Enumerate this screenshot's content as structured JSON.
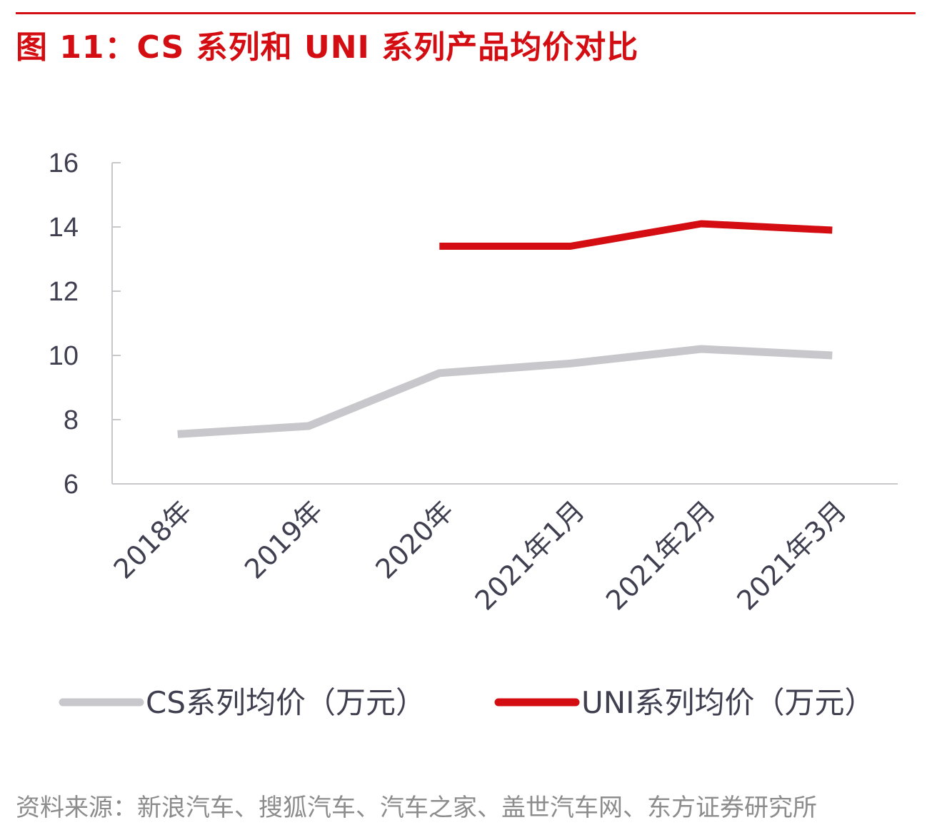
{
  "figure_title": "图 11：CS 系列和 UNI 系列产品均价对比",
  "source_text": "资料来源：新浪汽车、搜狐汽车、汽车之家、盖世汽车网、东方证券研究所",
  "colors": {
    "title": "#d40d12",
    "cs_series": "#c8c8cc",
    "uni_series": "#d40d12",
    "axis": "#c8c8cc",
    "tick_text": "#3f3f50"
  },
  "chart_data": {
    "type": "line",
    "categories": [
      "2018年",
      "2019年",
      "2020年",
      "2021年1月",
      "2021年2月",
      "2021年3月"
    ],
    "yticks": [
      "6",
      "8",
      "10",
      "12",
      "14",
      "16"
    ],
    "ylim": [
      6,
      16
    ],
    "grid": false,
    "legend_position": "bottom",
    "series": [
      {
        "name": "CS系列均价（万元）",
        "color": "#c8c8cc",
        "values": [
          7.55,
          7.8,
          9.45,
          9.75,
          10.2,
          10.0
        ]
      },
      {
        "name": "UNI系列均价（万元）",
        "color": "#d40d12",
        "values": [
          null,
          null,
          13.4,
          13.4,
          14.1,
          13.9
        ]
      }
    ]
  }
}
